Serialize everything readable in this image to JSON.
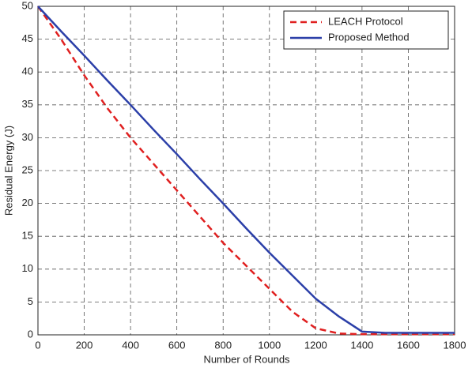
{
  "chart_data": {
    "type": "line",
    "xlabel": "Number of Rounds",
    "ylabel": "Residual Energy (J)",
    "x": [
      0,
      100,
      200,
      300,
      400,
      500,
      600,
      700,
      800,
      900,
      1000,
      1100,
      1200,
      1300,
      1400,
      1500,
      1600,
      1700,
      1800
    ],
    "series": [
      {
        "name": "LEACH Protocol",
        "color": "#e02020",
        "dashed": true,
        "values": [
          50,
          45,
          39.5,
          34.5,
          30,
          26,
          22,
          18,
          14,
          10.5,
          7,
          3.5,
          1,
          0.2,
          0.1,
          0.1,
          0.1,
          0.1,
          0.1
        ]
      },
      {
        "name": "Proposed Method",
        "color": "#2b3fa8",
        "dashed": false,
        "values": [
          50,
          46.2,
          42.5,
          38.7,
          35,
          31.2,
          27.5,
          23.7,
          20,
          16.2,
          12.5,
          9,
          5.5,
          2.8,
          0.5,
          0.3,
          0.3,
          0.3,
          0.3
        ]
      }
    ],
    "xlim": [
      0,
      1800
    ],
    "xticks": [
      0,
      200,
      400,
      600,
      800,
      1000,
      1200,
      1400,
      1600,
      1800
    ],
    "ylim": [
      0,
      50
    ],
    "yticks": [
      0,
      5,
      10,
      15,
      20,
      25,
      30,
      35,
      40,
      45,
      50
    ],
    "grid": true,
    "legend": "top-right"
  }
}
